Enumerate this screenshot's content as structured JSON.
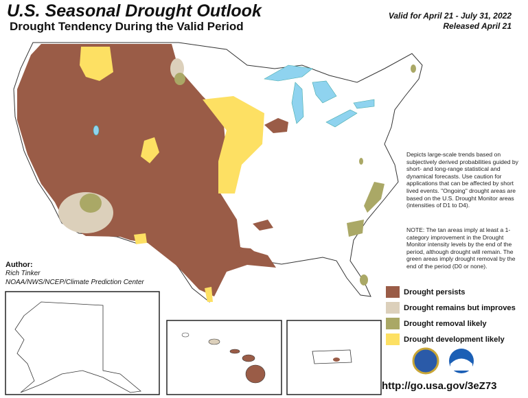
{
  "header": {
    "title": "U.S. Seasonal Drought Outlook",
    "subtitle": "Drought Tendency During the Valid Period",
    "valid": "Valid for April 21 - July 31, 2022",
    "released": "Released April 21"
  },
  "notes": {
    "description": "Depicts large-scale trends based on subjectively derived probabilities guided by short- and long-range statistical and dynamical forecasts. Use caution for applications that can be affected by short lived events. \"Ongoing\" drought areas are based on the U.S. Drought Monitor areas (intensities of D1 to D4).",
    "note": "NOTE: The tan areas imply at least a 1-category improvement in the Drought Monitor intensity levels by the end of the period, although drought will remain. The green areas imply drought removal by the end of the period (D0 or none)."
  },
  "author": {
    "label": "Author:",
    "name": "Rich Tinker",
    "org": "NOAA/NWS/NCEP/Climate Prediction Center"
  },
  "legend": {
    "items": [
      {
        "label": "Drought persists",
        "color": "#9a5c47"
      },
      {
        "label": "Drought remains but improves",
        "color": "#dcd0bb"
      },
      {
        "label": "Drought removal likely",
        "color": "#aaa866"
      },
      {
        "label": "Drought development likely",
        "color": "#fde063"
      }
    ]
  },
  "url": "http://go.usa.gov/3eZ73"
}
